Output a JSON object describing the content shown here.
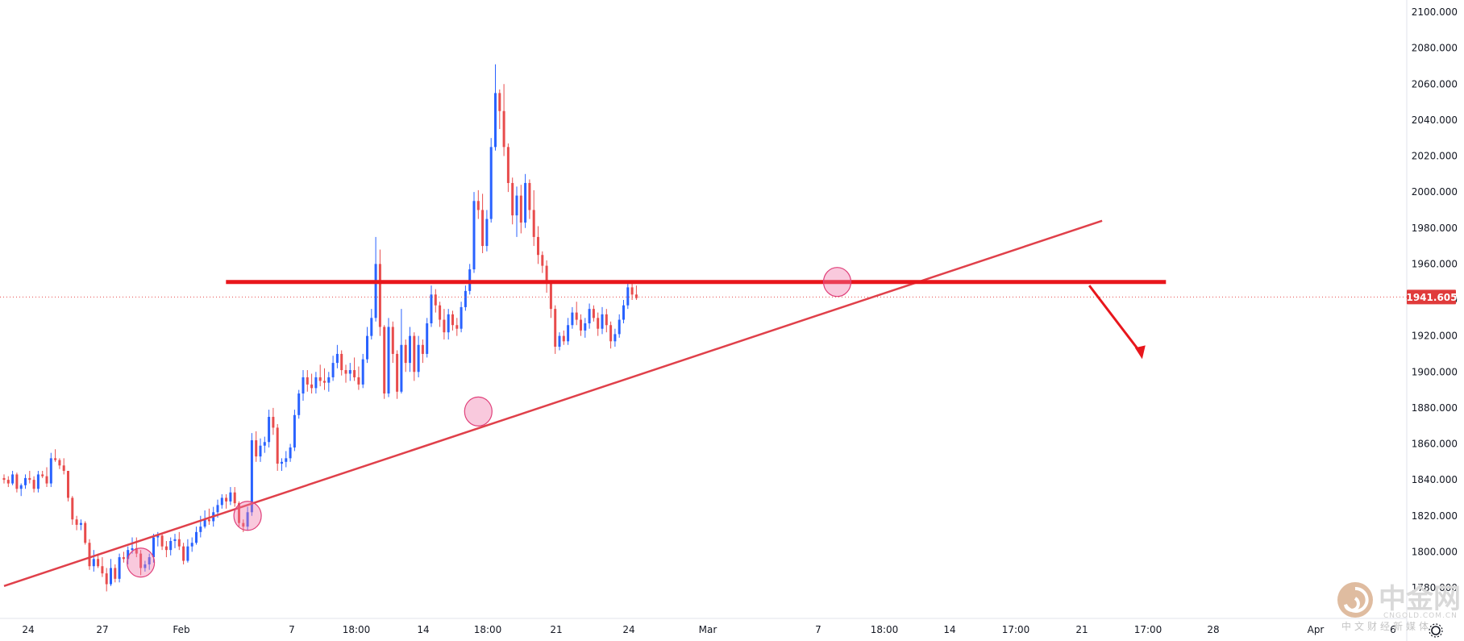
{
  "chart_data": {
    "type": "candlestick",
    "instrument_hint": "gold spot",
    "ylim": [
      1775,
      2105
    ],
    "y_ticks": [
      "1780.000",
      "1800.000",
      "1820.000",
      "1840.000",
      "1860.000",
      "1880.000",
      "1900.000",
      "1920.000",
      "1940.000",
      "1960.000",
      "1980.000",
      "2000.000",
      "2020.000",
      "2040.000",
      "2060.000",
      "2080.000",
      "2100.000"
    ],
    "x_ticks": [
      "24",
      "27",
      "Feb",
      "7",
      "18:00",
      "14",
      "18:00",
      "21",
      "24",
      "Mar",
      "7",
      "18:00",
      "14",
      "17:00",
      "21",
      "17:00",
      "28",
      "Apr",
      "6"
    ],
    "current_price": {
      "value": 1941.605,
      "label": "1941.605"
    },
    "annotations": {
      "trendline": {
        "from": {
          "bar": 0,
          "price": 1781
        },
        "to": {
          "bar": 257,
          "price": 1984
        }
      },
      "resistance": {
        "price": 1950,
        "from_bar": 51,
        "to_bar": 271
      },
      "touch_points": [
        {
          "bar": 32,
          "price": 1794
        },
        {
          "bar": 57,
          "price": 1820
        },
        {
          "bar": 111,
          "price": 1878
        },
        {
          "bar": 195,
          "price": 1950
        }
      ],
      "forecast_arrow": {
        "from": {
          "bar": 254,
          "price": 1948
        },
        "to": {
          "bar": 266,
          "price": 1908
        }
      }
    },
    "candles": [
      [
        1841,
        1843,
        1838,
        1840
      ],
      [
        1840,
        1842,
        1836,
        1838
      ],
      [
        1838,
        1845,
        1837,
        1843
      ],
      [
        1843,
        1844,
        1833,
        1835
      ],
      [
        1835,
        1838,
        1831,
        1837
      ],
      [
        1837,
        1843,
        1835,
        1841
      ],
      [
        1841,
        1845,
        1838,
        1840
      ],
      [
        1840,
        1842,
        1833,
        1835
      ],
      [
        1835,
        1845,
        1833,
        1843
      ],
      [
        1843,
        1845,
        1841,
        1842
      ],
      [
        1842,
        1847,
        1836,
        1838
      ],
      [
        1838,
        1855,
        1836,
        1852
      ],
      [
        1852,
        1857,
        1850,
        1851
      ],
      [
        1851,
        1852,
        1846,
        1848
      ],
      [
        1848,
        1852,
        1843,
        1845
      ],
      [
        1845,
        1845,
        1828,
        1830
      ],
      [
        1830,
        1831,
        1815,
        1818
      ],
      [
        1818,
        1820,
        1812,
        1815
      ],
      [
        1815,
        1818,
        1812,
        1816
      ],
      [
        1816,
        1817,
        1804,
        1805
      ],
      [
        1805,
        1807,
        1790,
        1792
      ],
      [
        1792,
        1801,
        1789,
        1796
      ],
      [
        1796,
        1799,
        1791,
        1792
      ],
      [
        1792,
        1797,
        1786,
        1788
      ],
      [
        1788,
        1791,
        1778,
        1782
      ],
      [
        1782,
        1796,
        1781,
        1791
      ],
      [
        1791,
        1793,
        1783,
        1785
      ],
      [
        1785,
        1799,
        1783,
        1797
      ],
      [
        1797,
        1800,
        1794,
        1796
      ],
      [
        1796,
        1803,
        1793,
        1801
      ],
      [
        1801,
        1808,
        1799,
        1802
      ],
      [
        1802,
        1808,
        1797,
        1799
      ],
      [
        1799,
        1801,
        1787,
        1791
      ],
      [
        1791,
        1795,
        1789,
        1793
      ],
      [
        1793,
        1799,
        1790,
        1797
      ],
      [
        1797,
        1810,
        1794,
        1808
      ],
      [
        1808,
        1811,
        1803,
        1809
      ],
      [
        1809,
        1810,
        1801,
        1803
      ],
      [
        1803,
        1806,
        1797,
        1801
      ],
      [
        1801,
        1808,
        1798,
        1806
      ],
      [
        1806,
        1810,
        1802,
        1807
      ],
      [
        1807,
        1811,
        1801,
        1803
      ],
      [
        1803,
        1805,
        1793,
        1795
      ],
      [
        1795,
        1807,
        1794,
        1803
      ],
      [
        1803,
        1808,
        1800,
        1805
      ],
      [
        1805,
        1814,
        1804,
        1811
      ],
      [
        1811,
        1820,
        1808,
        1814
      ],
      [
        1814,
        1823,
        1813,
        1818
      ],
      [
        1818,
        1824,
        1815,
        1817
      ],
      [
        1817,
        1825,
        1814,
        1822
      ],
      [
        1822,
        1829,
        1819,
        1826
      ],
      [
        1826,
        1832,
        1824,
        1830
      ],
      [
        1830,
        1832,
        1824,
        1828
      ],
      [
        1828,
        1836,
        1826,
        1833
      ],
      [
        1833,
        1836,
        1825,
        1827
      ],
      [
        1827,
        1828,
        1814,
        1816
      ],
      [
        1816,
        1818,
        1811,
        1814
      ],
      [
        1814,
        1825,
        1812,
        1822
      ],
      [
        1822,
        1866,
        1820,
        1862
      ],
      [
        1862,
        1867,
        1850,
        1853
      ],
      [
        1853,
        1863,
        1850,
        1859
      ],
      [
        1859,
        1864,
        1855,
        1861
      ],
      [
        1861,
        1879,
        1858,
        1875
      ],
      [
        1875,
        1880,
        1865,
        1869
      ],
      [
        1869,
        1871,
        1845,
        1849
      ],
      [
        1849,
        1852,
        1845,
        1850
      ],
      [
        1850,
        1856,
        1847,
        1852
      ],
      [
        1852,
        1860,
        1850,
        1858
      ],
      [
        1858,
        1879,
        1856,
        1876
      ],
      [
        1876,
        1890,
        1874,
        1888
      ],
      [
        1888,
        1901,
        1884,
        1897
      ],
      [
        1897,
        1901,
        1889,
        1893
      ],
      [
        1893,
        1899,
        1888,
        1891
      ],
      [
        1891,
        1900,
        1888,
        1897
      ],
      [
        1897,
        1904,
        1892,
        1895
      ],
      [
        1895,
        1902,
        1890,
        1894
      ],
      [
        1894,
        1900,
        1889,
        1897
      ],
      [
        1897,
        1909,
        1895,
        1905
      ],
      [
        1905,
        1915,
        1902,
        1910
      ],
      [
        1910,
        1912,
        1898,
        1901
      ],
      [
        1901,
        1904,
        1894,
        1899
      ],
      [
        1899,
        1905,
        1895,
        1901
      ],
      [
        1901,
        1908,
        1895,
        1897
      ],
      [
        1897,
        1903,
        1890,
        1893
      ],
      [
        1893,
        1910,
        1891,
        1907
      ],
      [
        1907,
        1925,
        1905,
        1920
      ],
      [
        1920,
        1935,
        1918,
        1930
      ],
      [
        1930,
        1975,
        1928,
        1960
      ],
      [
        1960,
        1968,
        1920,
        1925
      ],
      [
        1925,
        1926,
        1885,
        1888
      ],
      [
        1888,
        1930,
        1886,
        1925
      ],
      [
        1925,
        1928,
        1905,
        1910
      ],
      [
        1910,
        1912,
        1885,
        1889
      ],
      [
        1889,
        1935,
        1888,
        1915
      ],
      [
        1915,
        1918,
        1900,
        1905
      ],
      [
        1905,
        1925,
        1900,
        1920
      ],
      [
        1920,
        1922,
        1895,
        1900
      ],
      [
        1900,
        1920,
        1897,
        1915
      ],
      [
        1915,
        1918,
        1905,
        1910
      ],
      [
        1910,
        1930,
        1908,
        1927
      ],
      [
        1927,
        1948,
        1925,
        1943
      ],
      [
        1943,
        1946,
        1933,
        1937
      ],
      [
        1937,
        1939,
        1925,
        1929
      ],
      [
        1929,
        1935,
        1918,
        1922
      ],
      [
        1922,
        1935,
        1918,
        1932
      ],
      [
        1932,
        1934,
        1923,
        1926
      ],
      [
        1926,
        1930,
        1920,
        1924
      ],
      [
        1924,
        1939,
        1922,
        1936
      ],
      [
        1936,
        1948,
        1934,
        1945
      ],
      [
        1945,
        1960,
        1943,
        1957
      ],
      [
        1957,
        2000,
        1955,
        1995
      ],
      [
        1995,
        2001,
        1985,
        1990
      ],
      [
        1990,
        1999,
        1966,
        1970
      ],
      [
        1970,
        1990,
        1967,
        1985
      ],
      [
        1985,
        2030,
        1983,
        2025
      ],
      [
        2025,
        2071,
        2023,
        2055
      ],
      [
        2055,
        2057,
        2035,
        2045
      ],
      [
        2045,
        2060,
        2020,
        2025
      ],
      [
        2025,
        2027,
        2000,
        2005
      ],
      [
        2005,
        2008,
        1982,
        1987
      ],
      [
        1987,
        2003,
        1975,
        1998
      ],
      [
        1998,
        2004,
        1977,
        1983
      ],
      [
        1983,
        2010,
        1980,
        2005
      ],
      [
        2005,
        2007,
        1985,
        1990
      ],
      [
        1990,
        2001,
        1970,
        1975
      ],
      [
        1975,
        1981,
        1960,
        1965
      ],
      [
        1965,
        1967,
        1955,
        1959
      ],
      [
        1959,
        1962,
        1944,
        1950
      ],
      [
        1950,
        1951,
        1930,
        1935
      ],
      [
        1935,
        1937,
        1910,
        1914
      ],
      [
        1914,
        1922,
        1912,
        1920
      ],
      [
        1920,
        1923,
        1915,
        1917
      ],
      [
        1917,
        1930,
        1915,
        1926
      ],
      [
        1926,
        1936,
        1924,
        1933
      ],
      [
        1933,
        1939,
        1926,
        1929
      ],
      [
        1929,
        1932,
        1920,
        1923
      ],
      [
        1923,
        1930,
        1919,
        1927
      ],
      [
        1927,
        1938,
        1924,
        1935
      ],
      [
        1935,
        1937,
        1928,
        1930
      ],
      [
        1930,
        1933,
        1920,
        1924
      ],
      [
        1924,
        1936,
        1921,
        1932
      ],
      [
        1932,
        1935,
        1922,
        1926
      ],
      [
        1926,
        1928,
        1913,
        1917
      ],
      [
        1917,
        1924,
        1914,
        1921
      ],
      [
        1921,
        1932,
        1919,
        1929
      ],
      [
        1929,
        1940,
        1927,
        1937
      ],
      [
        1937,
        1950,
        1935,
        1947
      ],
      [
        1947,
        1949,
        1940,
        1943
      ],
      [
        1943,
        1948,
        1940,
        1941
      ]
    ]
  }
}
